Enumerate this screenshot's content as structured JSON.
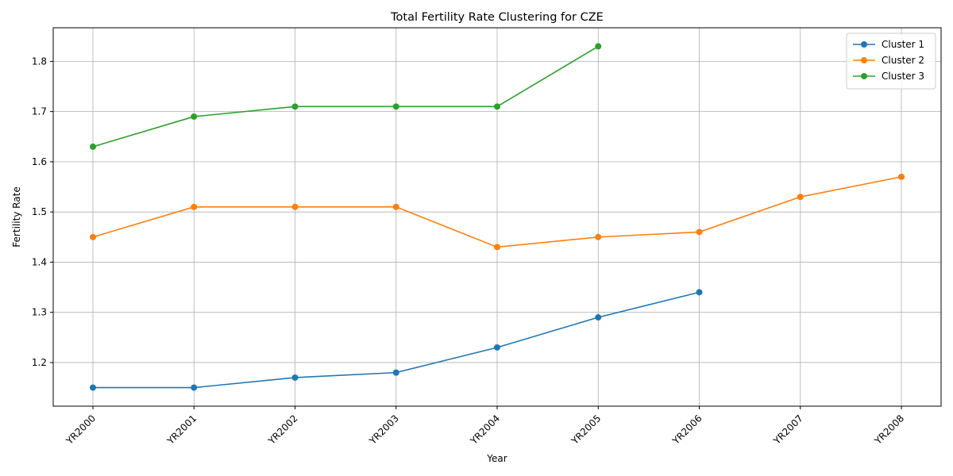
{
  "chart_data": {
    "type": "line",
    "title": "Total Fertility Rate Clustering for CZE",
    "xlabel": "Year",
    "ylabel": "Fertility Rate",
    "categories": [
      "YR2000",
      "YR2001",
      "YR2002",
      "YR2003",
      "YR2004",
      "YR2005",
      "YR2006",
      "YR2007",
      "YR2008"
    ],
    "ylim": [
      1.113,
      1.867
    ],
    "yticks": [
      1.2,
      1.3,
      1.4,
      1.5,
      1.6,
      1.7,
      1.8
    ],
    "grid": true,
    "legend_position": "top-right",
    "series": [
      {
        "name": "Cluster 1",
        "color": "#1f77b4",
        "values": [
          1.15,
          1.15,
          1.17,
          1.18,
          1.23,
          1.29,
          1.34,
          null,
          null
        ]
      },
      {
        "name": "Cluster 2",
        "color": "#ff7f0e",
        "values": [
          1.45,
          1.51,
          1.51,
          1.51,
          1.43,
          1.45,
          1.46,
          1.53,
          1.57
        ]
      },
      {
        "name": "Cluster 3",
        "color": "#2ca02c",
        "values": [
          1.63,
          1.69,
          1.71,
          1.71,
          1.71,
          1.83,
          null,
          null,
          null
        ]
      }
    ]
  }
}
